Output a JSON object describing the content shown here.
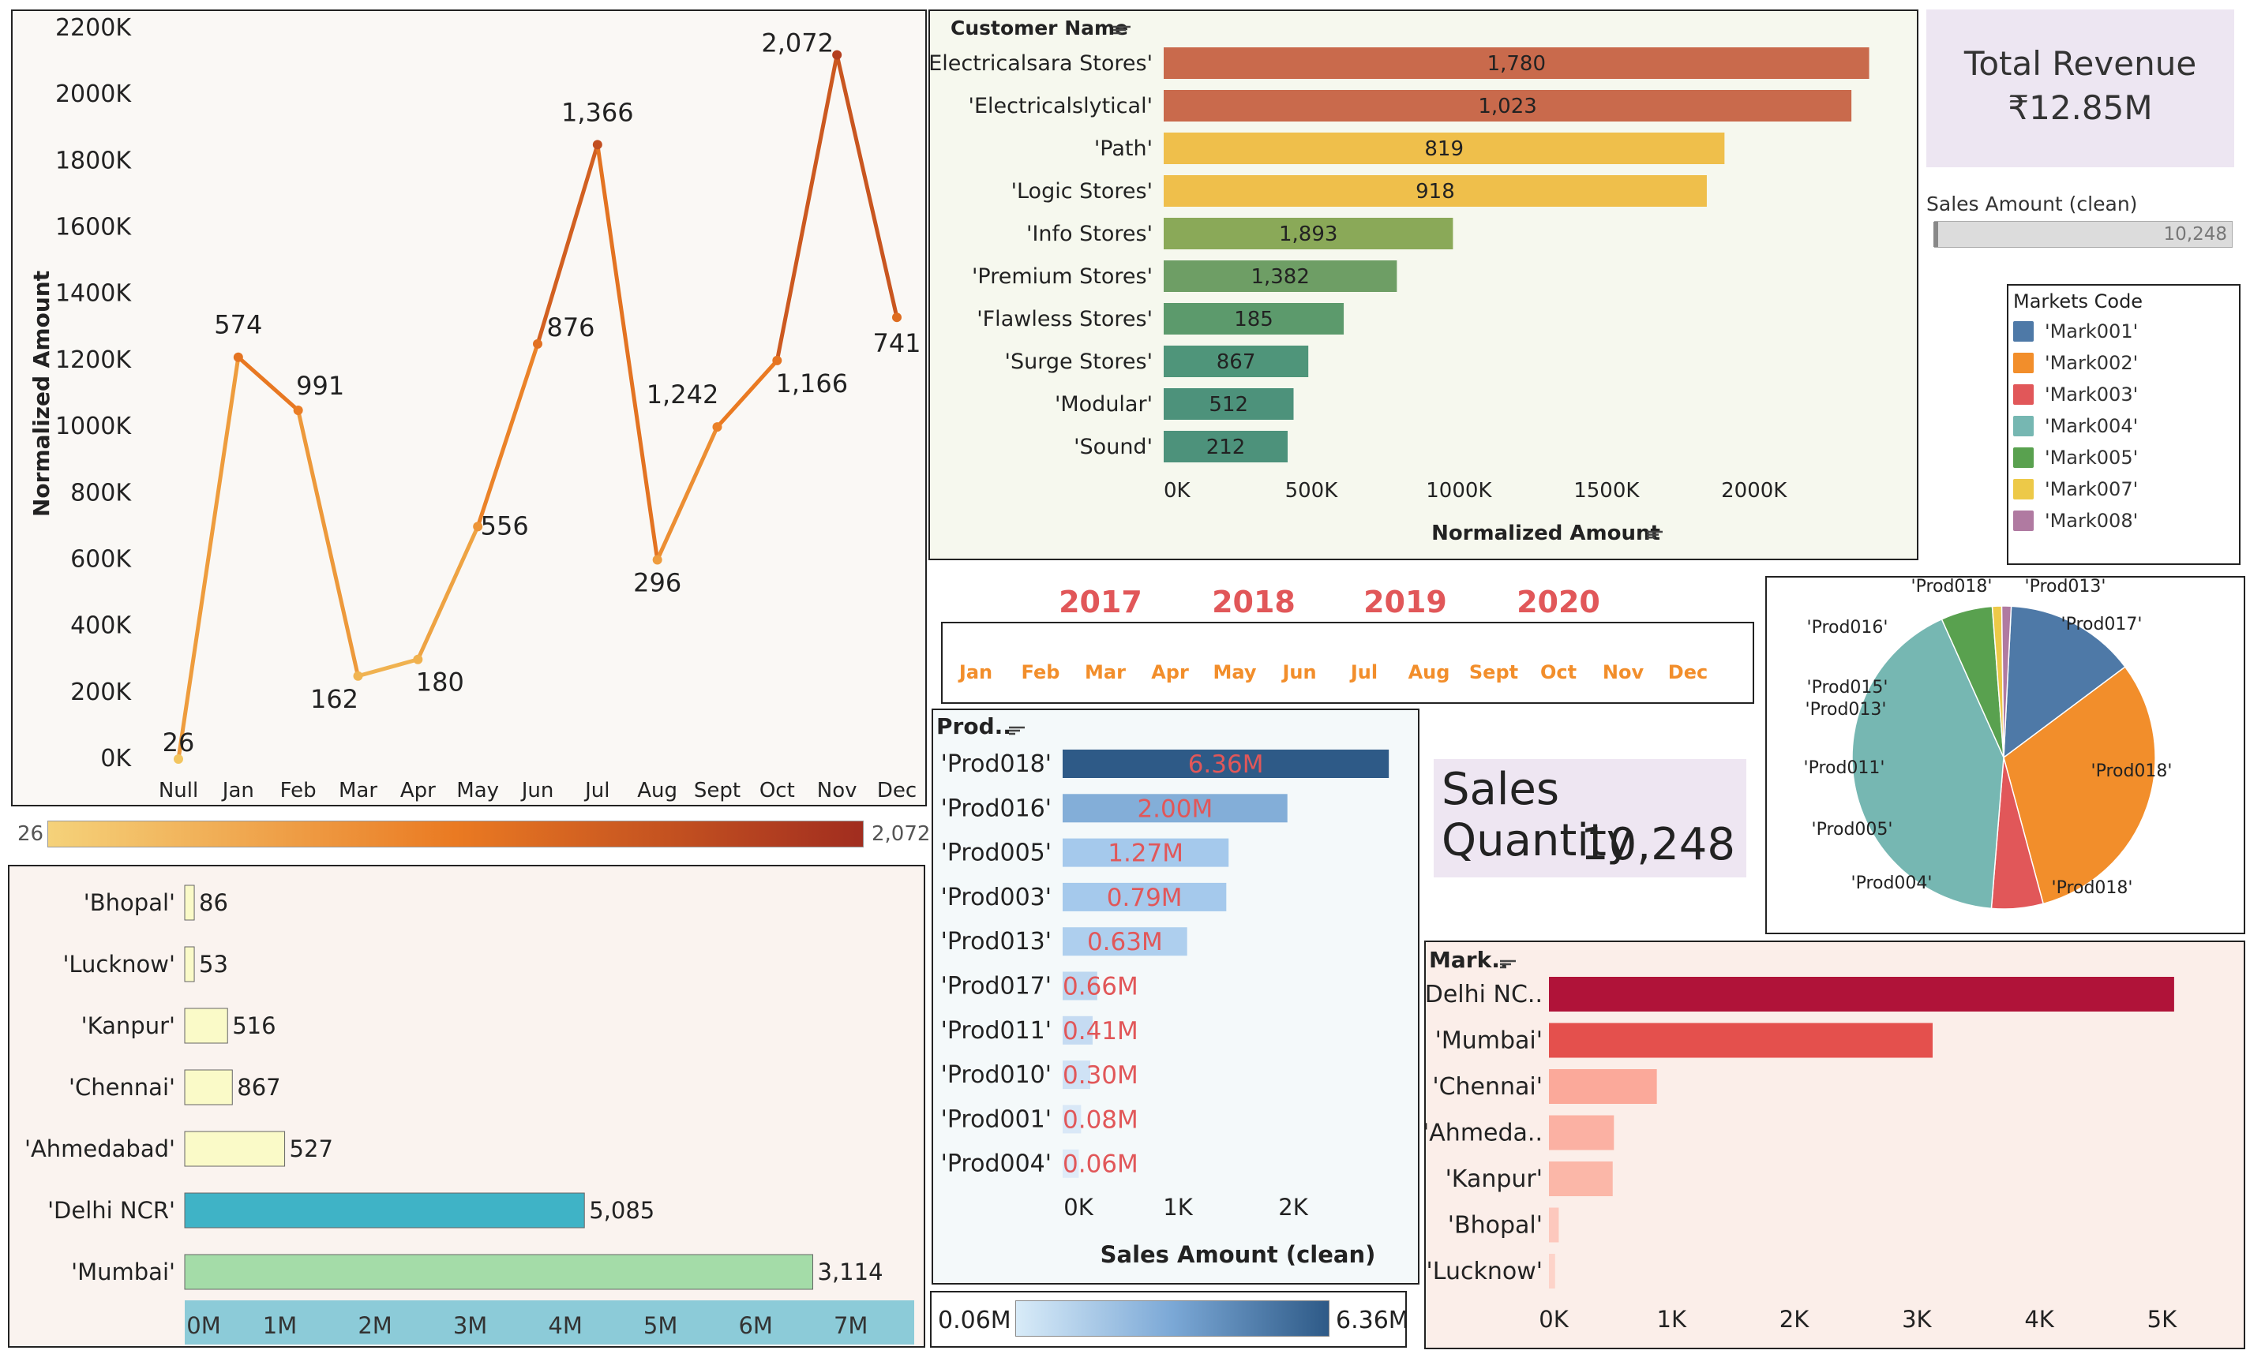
{
  "colors": {
    "line_low": "#f2c55f",
    "line_mid": "#ea7a22",
    "line_high": "#b03a1f",
    "customer_colors": [
      "#c96a4c",
      "#c96a4c",
      "#efbf4b",
      "#efbf4b",
      "#8aa958",
      "#6e9e65",
      "#5c9a6c",
      "#4f957a",
      "#4d927b",
      "#4d927b"
    ],
    "product_colors": [
      "#2e5a87",
      "#83aed8",
      "#a5c9ec",
      "#a5c9ec",
      "#aecfee",
      "#bdd7f0",
      "#c5dbf2",
      "#cfe2f5",
      "#d9e8f7",
      "#deebf8"
    ],
    "city_colors": [
      "#fafac8",
      "#fafac8",
      "#fafac8",
      "#fafac8",
      "#fafac8",
      "#3fb3c6",
      "#a4dca8"
    ],
    "market_colors": [
      "#b01339",
      "#e4504d",
      "#fba99a",
      "#fbb1a3",
      "#fbb7a8",
      "#fdc8bd",
      "#fdd3c9"
    ]
  },
  "kpis": {
    "total_revenue_label": "Total Revenue",
    "total_revenue_value": "₹12.85M",
    "sales_amount_filter_label": "Sales Amount (clean)",
    "sales_amount_filter_value": "10,248",
    "sales_quantity_label": "Sales Quantity",
    "sales_quantity_value": "10,248"
  },
  "year_filter": {
    "years": [
      "2017",
      "2018",
      "2019",
      "2020"
    ],
    "months": [
      "Jan",
      "Feb",
      "Mar",
      "Apr",
      "May",
      "Jun",
      "Jul",
      "Aug",
      "Sept",
      "Oct",
      "Nov",
      "Dec"
    ]
  },
  "markets_legend": {
    "title": "Markets Code",
    "items": [
      {
        "label": "'Mark001'",
        "color": "#4e79a7"
      },
      {
        "label": "'Mark002'",
        "color": "#f28e2b"
      },
      {
        "label": "'Mark003'",
        "color": "#e15759"
      },
      {
        "label": "'Mark004'",
        "color": "#76b7b2"
      },
      {
        "label": "'Mark005'",
        "color": "#59a14f"
      },
      {
        "label": "'Mark007'",
        "color": "#edc948"
      },
      {
        "label": "'Mark008'",
        "color": "#b07aa1"
      }
    ]
  },
  "line_colorbar": {
    "min_label": "26",
    "max_label": "2,072"
  },
  "product_colorbar": {
    "min_label": "0.06M",
    "max_label": "6.36M"
  },
  "chart_data": [
    {
      "id": "monthly",
      "type": "line",
      "ylabel": "Normalized Amount",
      "categories": [
        "Null",
        "Jan",
        "Feb",
        "Mar",
        "Apr",
        "May",
        "Jun",
        "Jul",
        "Aug",
        "Sept",
        "Oct",
        "Nov",
        "Dec"
      ],
      "values": [
        0,
        1210,
        1050,
        250,
        300,
        700,
        1250,
        1850,
        600,
        1000,
        1200,
        2120,
        1330
      ],
      "labels": [
        "26",
        "574",
        "991",
        "162",
        "180",
        "556",
        "876",
        "1,366",
        "296",
        "1,242",
        "1,166",
        "2,072",
        "741"
      ],
      "yticks": [
        "0K",
        "200K",
        "400K",
        "600K",
        "800K",
        "1000K",
        "1200K",
        "1400K",
        "1600K",
        "1800K",
        "2000K",
        "2200K"
      ],
      "ylim": [
        0,
        2200
      ]
    },
    {
      "id": "customers",
      "type": "bar",
      "orientation": "horizontal",
      "header": "Customer Name",
      "xlabel": "Normalized Amount",
      "categories": [
        "'Electricalsara Stores'",
        "'Electricalslytical'",
        "'Path'",
        "'Logic Stores'",
        "'Info Stores'",
        "'Premium Stores'",
        "'Flawless Stores'",
        "'Surge Stores'",
        "'Modular'",
        "'Sound'"
      ],
      "values": [
        2390,
        2330,
        1900,
        1840,
        980,
        790,
        610,
        490,
        440,
        420
      ],
      "labels": [
        "1,780",
        "1,023",
        "819",
        "918",
        "1,893",
        "1,382",
        "185",
        "867",
        "512",
        "212"
      ],
      "xticks": [
        "0K",
        "500K",
        "1000K",
        "1500K",
        "2000K"
      ],
      "xlim": [
        0,
        2450
      ]
    },
    {
      "id": "products",
      "type": "bar",
      "orientation": "horizontal",
      "header": "Prod..",
      "xlabel": "Sales Amount (clean)",
      "categories": [
        "'Prod018'",
        "'Prod016'",
        "'Prod005'",
        "'Prod003'",
        "'Prod013'",
        "'Prod017'",
        "'Prod011'",
        "'Prod010'",
        "'Prod001'",
        "'Prod004'"
      ],
      "values": [
        2.83,
        1.95,
        1.44,
        1.42,
        1.08,
        0.3,
        0.26,
        0.24,
        0.16,
        0.14
      ],
      "labels": [
        "6.36M",
        "2.00M",
        "1.27M",
        "0.79M",
        "0.63M",
        "0.66M",
        "0.41M",
        "0.30M",
        "0.08M",
        "0.06M"
      ],
      "xticks": [
        "0K",
        "1K",
        "2K"
      ],
      "xlim": [
        0,
        3.0
      ]
    },
    {
      "id": "cities",
      "type": "bar",
      "orientation": "horizontal",
      "categories": [
        "'Bhopal'",
        "'Lucknow'",
        "'Kanpur'",
        "'Chennai'",
        "'Ahmedabad'",
        "'Delhi NCR'",
        "'Mumbai'"
      ],
      "values": [
        0.1,
        0.1,
        0.45,
        0.5,
        1.05,
        4.2,
        6.6
      ],
      "labels": [
        "86",
        "53",
        "516",
        "867",
        "527",
        "5,085",
        "3,114"
      ],
      "xticks": [
        "0M",
        "1M",
        "2M",
        "3M",
        "4M",
        "5M",
        "6M",
        "7M"
      ],
      "xlim": [
        0,
        7.5
      ]
    },
    {
      "id": "markets",
      "type": "bar",
      "orientation": "horizontal",
      "header": "Mark..",
      "categories": [
        "'Delhi NC..",
        "'Mumbai'",
        "'Chennai'",
        "'Ahmeda..",
        "'Kanpur'",
        "'Bhopal'",
        "'Lucknow'"
      ],
      "values": [
        5100,
        3130,
        880,
        530,
        520,
        80,
        50
      ],
      "xticks": [
        "0K",
        "1K",
        "2K",
        "3K",
        "4K",
        "5K"
      ],
      "xlim": [
        0,
        5500
      ]
    },
    {
      "id": "products_pie",
      "type": "pie",
      "slices": [
        {
          "label": "'Prod013'",
          "value": 0.14,
          "color": "#4e79a7"
        },
        {
          "label": "'Prod017'",
          "value": 0.31,
          "color": "#f28e2b"
        },
        {
          "label": "'Prod018'",
          "value": 0.055,
          "color": "#e15759"
        },
        {
          "label": "'Prod004'",
          "value": 0.42,
          "color": "#76b7b2"
        },
        {
          "label": "'Prod016'",
          "value": 0.055,
          "color": "#59a14f"
        },
        {
          "label": "'Prod018'",
          "value": 0.01,
          "color": "#edc948"
        },
        {
          "label": "'Prod015'",
          "value": 0.01,
          "color": "#b07aa1"
        }
      ],
      "outer_labels": [
        "'Prod018'",
        "'Prod013'",
        "'Prod016'",
        "'Prod017'",
        "'Prod015'",
        "'Prod013'",
        "'Prod011'",
        "'Prod018'",
        "'Prod005'",
        "'Prod004'",
        "'Prod018'"
      ]
    }
  ]
}
